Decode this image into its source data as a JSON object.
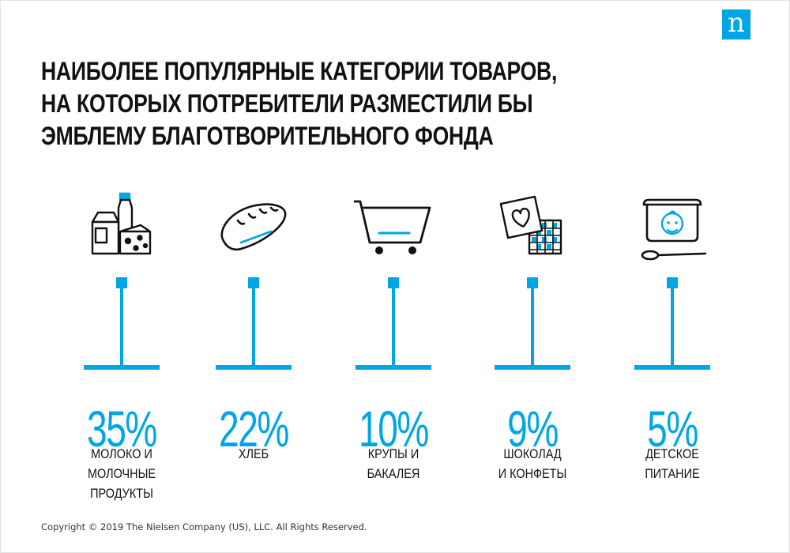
{
  "logo": {
    "letter": "n"
  },
  "title": {
    "lines": [
      "НАИБОЛЕЕ ПОПУЛЯРНЫЕ КАТЕГОРИИ ТОВАРОВ,",
      "НА КОТОРЫХ ПОТРЕБИТЕЛИ РАЗМЕСТИЛИ БЫ",
      "ЭМБЛЕМУ БЛАГОТВОРИТЕЛЬНОГО ФОНДА"
    ]
  },
  "accent_color": "#00a5e6",
  "categories": [
    {
      "icon": "milk-dairy-icon",
      "percent": "35%",
      "label_lines": [
        "МОЛОКО И МОЛОЧНЫЕ",
        "ПРОДУКТЫ"
      ]
    },
    {
      "icon": "bread-icon",
      "percent": "22%",
      "label_lines": [
        "ХЛЕБ"
      ]
    },
    {
      "icon": "shopping-cart-icon",
      "percent": "10%",
      "label_lines": [
        "КРУПЫ И",
        "БАКАЛЕЯ"
      ]
    },
    {
      "icon": "chocolate-icon",
      "percent": "9%",
      "label_lines": [
        "ШОКОЛАД",
        "И КОНФЕТЫ"
      ]
    },
    {
      "icon": "baby-food-icon",
      "percent": "5%",
      "label_lines": [
        "ДЕТСКОЕ",
        "ПИТАНИЕ"
      ]
    }
  ],
  "footer": {
    "copyright": "Copyright © 2019 The Nielsen Company (US), LLC. All Rights Reserved."
  }
}
